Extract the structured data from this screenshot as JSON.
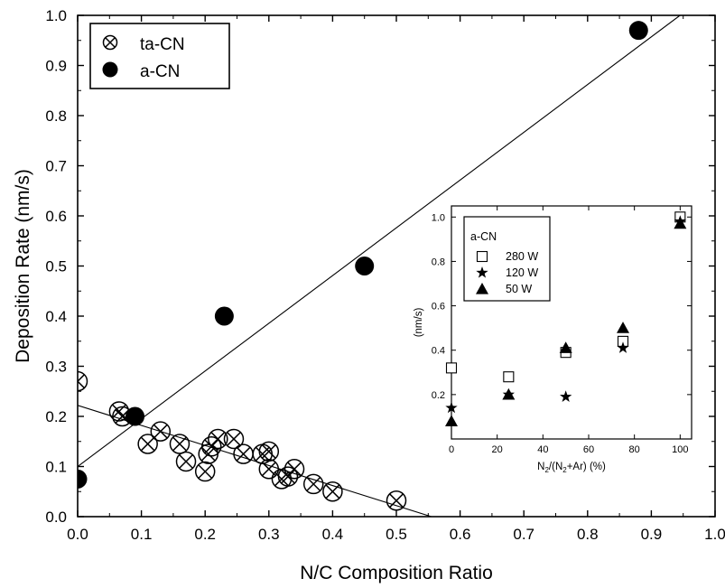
{
  "chart_data": [
    {
      "type": "scatter",
      "xlabel": "N/C Composition Ratio",
      "ylabel": "Deposition Rate (nm/s)",
      "xlim": [
        0.0,
        1.0
      ],
      "ylim": [
        0.0,
        1.0
      ],
      "xticks": [
        "0.0",
        "0.1",
        "0.2",
        "0.3",
        "0.4",
        "0.5",
        "0.6",
        "0.7",
        "0.8",
        "0.9",
        "1.0"
      ],
      "yticks": [
        "0.0",
        "0.1",
        "0.2",
        "0.3",
        "0.4",
        "0.5",
        "0.6",
        "0.7",
        "0.8",
        "0.9",
        "1.0"
      ],
      "legend_position": "top-left",
      "series": [
        {
          "name": "ta-CN",
          "marker": "circle-x",
          "x": [
            0.0,
            0.065,
            0.07,
            0.11,
            0.13,
            0.16,
            0.17,
            0.2,
            0.205,
            0.21,
            0.22,
            0.245,
            0.26,
            0.29,
            0.3,
            0.3,
            0.32,
            0.33,
            0.34,
            0.37,
            0.4,
            0.5
          ],
          "y": [
            0.27,
            0.21,
            0.2,
            0.145,
            0.17,
            0.145,
            0.11,
            0.09,
            0.125,
            0.14,
            0.155,
            0.155,
            0.125,
            0.125,
            0.13,
            0.095,
            0.075,
            0.08,
            0.095,
            0.065,
            0.05,
            0.032
          ]
        },
        {
          "name": "a-CN",
          "marker": "filled-circle",
          "x": [
            0.0,
            0.09,
            0.23,
            0.45,
            0.88
          ],
          "y": [
            0.075,
            0.2,
            0.4,
            0.5,
            0.97
          ]
        }
      ],
      "fit_lines": [
        {
          "x": [
            0.0,
            0.555
          ],
          "y": [
            0.222,
            0.0
          ]
        },
        {
          "x": [
            0.0,
            0.945
          ],
          "y": [
            0.1,
            1.0
          ]
        }
      ]
    },
    {
      "type": "scatter",
      "xlabel_parts": [
        "N",
        "2",
        "/(N",
        "2",
        "+Ar) (%)"
      ],
      "ylabel": "(nm/s)",
      "xlim": [
        0,
        105
      ],
      "ylim": [
        0.0,
        1.05
      ],
      "xticks": [
        "0",
        "20",
        "40",
        "60",
        "80",
        "100"
      ],
      "yticks": [
        "0.2",
        "0.4",
        "0.6",
        "0.8",
        "1.0"
      ],
      "legend_title": "a-CN",
      "legend_position": "top-left",
      "series": [
        {
          "name": "280 W",
          "marker": "open-square",
          "x": [
            0,
            25,
            50,
            75,
            100
          ],
          "y": [
            0.32,
            0.28,
            0.39,
            0.44,
            1.0
          ]
        },
        {
          "name": "120 W",
          "marker": "star",
          "x": [
            0,
            25,
            50,
            75,
            100
          ],
          "y": [
            0.14,
            0.2,
            0.19,
            0.41,
            0.98
          ]
        },
        {
          "name": "50 W",
          "marker": "filled-triangle",
          "x": [
            0,
            25,
            50,
            75,
            100
          ],
          "y": [
            0.08,
            0.2,
            0.41,
            0.5,
            0.97
          ]
        }
      ]
    }
  ]
}
